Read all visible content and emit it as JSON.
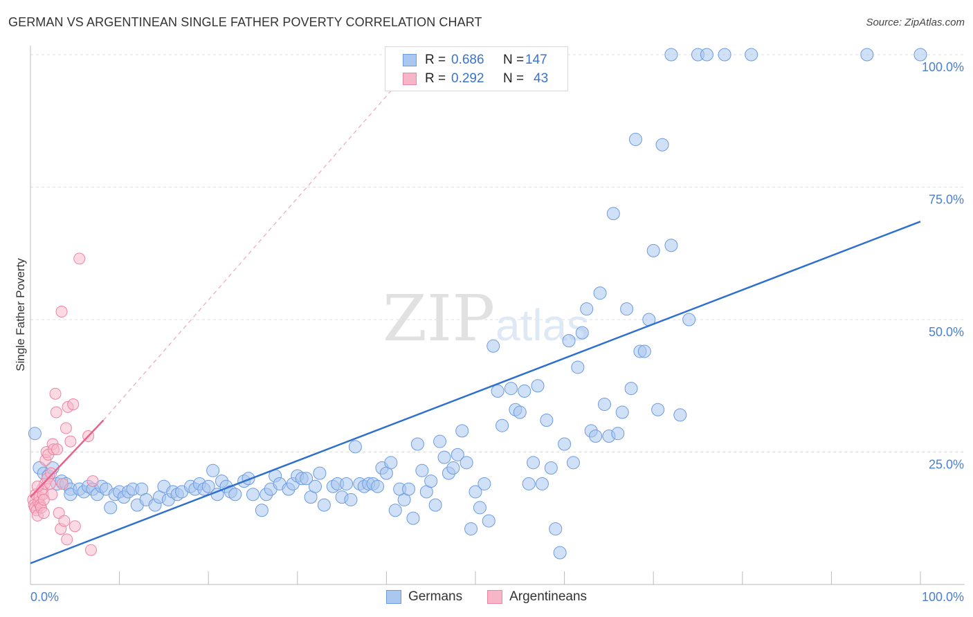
{
  "title": "GERMAN VS ARGENTINEAN SINGLE FATHER POVERTY CORRELATION CHART",
  "source": "Source: ZipAtlas.com",
  "colors": {
    "blue_fill": "#a9c7ef",
    "blue_stroke": "#6b9be0",
    "blue_line": "#2f6fcf",
    "pink_fill": "#f7b6c8",
    "pink_stroke": "#ec84a3",
    "pink_line": "#e8628a",
    "tick_text": "#4a7fcf"
  },
  "legend": {
    "rows": [
      {
        "swatch": "blue",
        "r_label": "R =",
        "r_value": "0.686",
        "n_label": "N =",
        "n_value": "147"
      },
      {
        "swatch": "pink",
        "r_label": "R =",
        "r_value": "0.292",
        "n_label": "N =",
        "n_value": "43"
      }
    ]
  },
  "bottom_legend": {
    "germans": "Germans",
    "argentineans": "Argentineans"
  },
  "chart_data": {
    "type": "scatter",
    "title": "GERMAN VS ARGENTINEAN SINGLE FATHER POVERTY CORRELATION CHART",
    "xlabel": "",
    "ylabel": "Single Father Poverty",
    "xlim": [
      0,
      100
    ],
    "ylim": [
      0,
      100
    ],
    "x_tick_labels": [
      "0.0%",
      "100.0%"
    ],
    "y_tick_labels": [
      {
        "value": 100,
        "label": "100.0%"
      },
      {
        "value": 75,
        "label": "75.0%"
      },
      {
        "value": 50,
        "label": "50.0%"
      },
      {
        "value": 25,
        "label": "25.0%"
      }
    ],
    "watermark": {
      "zip": "ZIP",
      "atlas": "atlas"
    },
    "series": [
      {
        "name": "Germans",
        "color": "blue",
        "r": 0.686,
        "n": 147,
        "trend": {
          "x0": 0,
          "y0": 4.0,
          "x1": 100,
          "y1": 68.5
        },
        "points": [
          [
            0.5,
            28.5
          ],
          [
            1,
            22
          ],
          [
            1.5,
            21
          ],
          [
            2,
            20.5
          ],
          [
            2.5,
            22
          ],
          [
            3,
            19
          ],
          [
            3.5,
            19.5
          ],
          [
            4,
            19
          ],
          [
            4.5,
            18
          ],
          [
            4.5,
            17
          ],
          [
            5.5,
            18
          ],
          [
            6,
            17.5
          ],
          [
            6.5,
            18.5
          ],
          [
            7,
            18
          ],
          [
            7.5,
            17
          ],
          [
            8,
            18.5
          ],
          [
            8.5,
            18
          ],
          [
            9,
            14.5
          ],
          [
            9.5,
            17
          ],
          [
            10,
            17.5
          ],
          [
            10.5,
            16.5
          ],
          [
            11,
            17.5
          ],
          [
            11.5,
            18
          ],
          [
            12,
            15
          ],
          [
            12.5,
            18
          ],
          [
            13,
            16
          ],
          [
            14,
            15
          ],
          [
            14.5,
            16.5
          ],
          [
            15,
            18.5
          ],
          [
            15.5,
            16
          ],
          [
            16,
            17.5
          ],
          [
            16.5,
            17
          ],
          [
            17,
            17.5
          ],
          [
            18,
            18.5
          ],
          [
            18.5,
            18
          ],
          [
            19,
            19
          ],
          [
            19.5,
            18
          ],
          [
            20,
            18.5
          ],
          [
            20.5,
            21.5
          ],
          [
            21,
            17
          ],
          [
            21.5,
            19.5
          ],
          [
            22,
            18.5
          ],
          [
            22.5,
            17.5
          ],
          [
            23,
            17
          ],
          [
            24,
            19.5
          ],
          [
            24.5,
            20
          ],
          [
            25,
            17
          ],
          [
            26,
            14
          ],
          [
            26.5,
            17
          ],
          [
            27,
            18
          ],
          [
            27.5,
            20.5
          ],
          [
            28,
            19
          ],
          [
            29,
            18
          ],
          [
            29.5,
            19
          ],
          [
            30,
            20.5
          ],
          [
            30.5,
            20
          ],
          [
            31,
            20
          ],
          [
            31.5,
            16.5
          ],
          [
            32,
            18.5
          ],
          [
            32.5,
            21
          ],
          [
            33,
            15
          ],
          [
            34,
            18.5
          ],
          [
            34.5,
            19
          ],
          [
            35,
            16.5
          ],
          [
            35.5,
            19
          ],
          [
            36,
            16
          ],
          [
            36.5,
            26
          ],
          [
            37,
            19
          ],
          [
            37.5,
            18.5
          ],
          [
            38,
            19
          ],
          [
            38.5,
            19
          ],
          [
            39,
            18.5
          ],
          [
            39.5,
            22
          ],
          [
            40,
            21
          ],
          [
            40.5,
            23
          ],
          [
            41,
            14
          ],
          [
            41.5,
            18
          ],
          [
            42,
            16
          ],
          [
            42.5,
            18
          ],
          [
            43,
            12.5
          ],
          [
            43.5,
            26.5
          ],
          [
            44,
            21.5
          ],
          [
            44.5,
            17.5
          ],
          [
            45,
            19.5
          ],
          [
            45.5,
            15
          ],
          [
            46,
            27
          ],
          [
            46.5,
            24
          ],
          [
            47,
            21
          ],
          [
            47.5,
            22
          ],
          [
            48,
            24.5
          ],
          [
            48.5,
            29
          ],
          [
            49,
            23
          ],
          [
            49.5,
            10.5
          ],
          [
            50,
            17.5
          ],
          [
            50.5,
            14.5
          ],
          [
            51,
            19
          ],
          [
            51.5,
            12
          ],
          [
            52,
            45
          ],
          [
            52.5,
            36.5
          ],
          [
            53,
            30
          ],
          [
            54,
            37
          ],
          [
            54.5,
            33
          ],
          [
            55,
            32.5
          ],
          [
            55.5,
            36.5
          ],
          [
            56,
            19
          ],
          [
            56.5,
            23
          ],
          [
            57,
            37.5
          ],
          [
            57.5,
            19
          ],
          [
            58,
            31
          ],
          [
            58.5,
            22
          ],
          [
            59,
            10.5
          ],
          [
            59.5,
            6
          ],
          [
            60,
            26.5
          ],
          [
            60.5,
            46
          ],
          [
            61,
            23
          ],
          [
            61.5,
            41
          ],
          [
            62,
            47.5
          ],
          [
            62.5,
            52
          ],
          [
            63,
            29
          ],
          [
            63.5,
            28
          ],
          [
            64,
            55
          ],
          [
            64.5,
            34
          ],
          [
            65,
            28
          ],
          [
            65.5,
            70
          ],
          [
            66,
            28.5
          ],
          [
            66.5,
            32.5
          ],
          [
            67,
            52
          ],
          [
            67.5,
            37
          ],
          [
            68,
            84
          ],
          [
            68.5,
            44
          ],
          [
            69,
            44
          ],
          [
            69.5,
            50
          ],
          [
            70,
            63
          ],
          [
            70.5,
            33
          ],
          [
            71,
            83
          ],
          [
            72,
            64
          ],
          [
            73,
            32
          ],
          [
            74,
            50
          ],
          [
            72,
            100
          ],
          [
            75,
            100
          ],
          [
            76,
            100
          ],
          [
            78,
            100
          ],
          [
            81,
            100
          ],
          [
            94,
            100
          ],
          [
            100,
            100
          ]
        ]
      },
      {
        "name": "Argentineans",
        "color": "pink",
        "r": 0.292,
        "n": 43,
        "trend": {
          "x0": 0,
          "y0": 16.5,
          "x1": 8.2,
          "y1": 31.0
        },
        "extended_trend": {
          "x0": 8.2,
          "y0": 31.0,
          "x1": 42.5,
          "y1": 97.0
        },
        "points": [
          [
            0.3,
            16
          ],
          [
            0.4,
            15
          ],
          [
            0.5,
            14.5
          ],
          [
            0.6,
            17
          ],
          [
            0.7,
            14
          ],
          [
            0.8,
            13
          ],
          [
            0.9,
            15.5
          ],
          [
            1,
            16.5
          ],
          [
            1.1,
            15
          ],
          [
            1.2,
            14.5
          ],
          [
            1.3,
            18
          ],
          [
            1.4,
            17
          ],
          [
            1.5,
            13.5
          ],
          [
            1.6,
            19
          ],
          [
            1.7,
            23.5
          ],
          [
            1.8,
            25
          ],
          [
            1.9,
            20
          ],
          [
            2,
            24.5
          ],
          [
            2.2,
            19
          ],
          [
            2.3,
            21
          ],
          [
            2.4,
            17
          ],
          [
            2.5,
            26.5
          ],
          [
            2.6,
            25.5
          ],
          [
            2.8,
            36
          ],
          [
            2.9,
            32.5
          ],
          [
            3,
            25.5
          ],
          [
            3.2,
            13.5
          ],
          [
            3.4,
            10.5
          ],
          [
            3.5,
            51.5
          ],
          [
            3.6,
            19
          ],
          [
            3.8,
            12
          ],
          [
            4,
            29.5
          ],
          [
            4.1,
            8.5
          ],
          [
            4.2,
            33.5
          ],
          [
            4.5,
            27
          ],
          [
            4.8,
            34
          ],
          [
            5,
            11
          ],
          [
            5.5,
            61.5
          ],
          [
            6.5,
            28
          ],
          [
            6.8,
            6.5
          ],
          [
            7,
            19.5
          ],
          [
            0.8,
            18.5
          ],
          [
            1.5,
            16
          ]
        ]
      }
    ]
  }
}
